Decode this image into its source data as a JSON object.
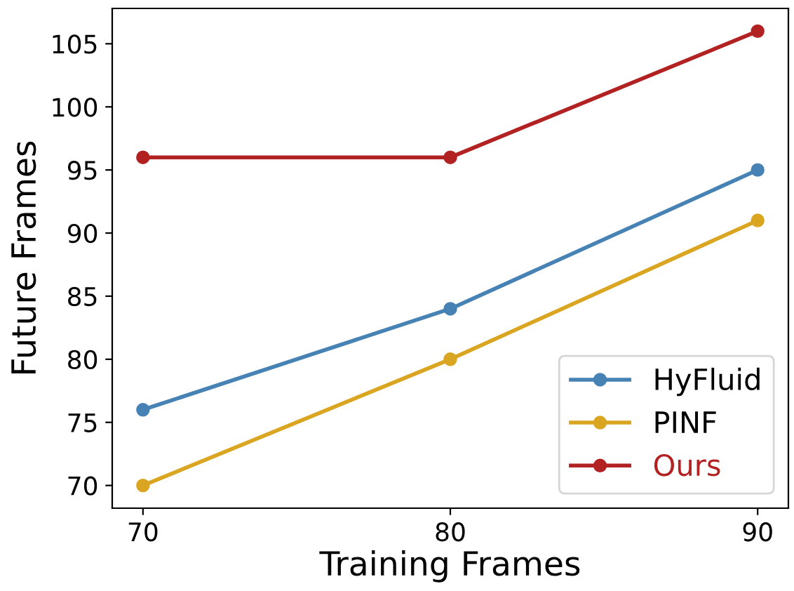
{
  "chart_data": {
    "type": "line",
    "xlabel": "Training Frames",
    "ylabel": "Future Frames",
    "x": [
      70,
      80,
      90
    ],
    "series": [
      {
        "name": "HyFluid",
        "color": "#4682b4",
        "values": [
          76,
          84,
          95
        ]
      },
      {
        "name": "PINF",
        "color": "#daa520",
        "values": [
          70,
          80,
          91
        ]
      },
      {
        "name": "Ours",
        "color": "#b22222",
        "values": [
          96,
          96,
          106
        ]
      }
    ],
    "xlim": [
      69,
      91
    ],
    "xticks": [
      70,
      80,
      90
    ],
    "ylim": [
      68.2,
      107.8
    ],
    "yticks": [
      70,
      75,
      80,
      85,
      90,
      95,
      100,
      105
    ],
    "marker": "circle",
    "line_style": "solid",
    "grid": false,
    "legend": "bottom right"
  }
}
